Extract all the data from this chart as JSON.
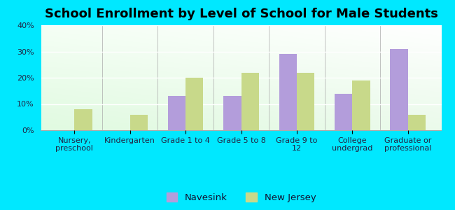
{
  "title": "School Enrollment by Level of School for Male Students",
  "categories": [
    "Nursery,\npreschool",
    "Kindergarten",
    "Grade 1 to 4",
    "Grade 5 to 8",
    "Grade 9 to\n12",
    "College\nundergrad",
    "Graduate or\nprofessional"
  ],
  "navesink": [
    0,
    0,
    13,
    13,
    29,
    14,
    31
  ],
  "new_jersey": [
    8,
    6,
    20,
    22,
    22,
    19,
    6
  ],
  "navesink_color": "#b39ddb",
  "new_jersey_color": "#c8d98a",
  "background_outer": "#00e8ff",
  "ylim": [
    0,
    40
  ],
  "yticks": [
    0,
    10,
    20,
    30,
    40
  ],
  "title_fontsize": 13,
  "tick_fontsize": 8,
  "legend_fontsize": 9.5,
  "bar_width": 0.32
}
